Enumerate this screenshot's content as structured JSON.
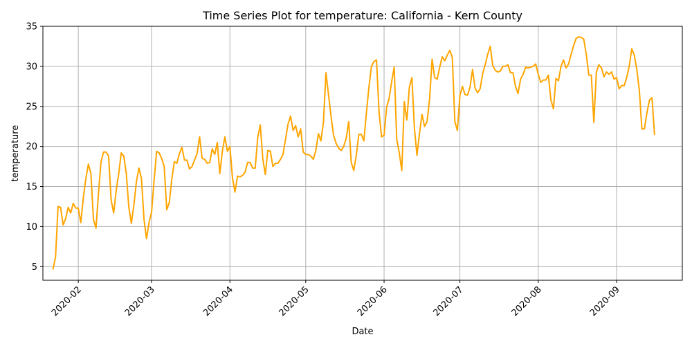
{
  "colors": {
    "series": "#ffa500",
    "grid": "#b0b0b0",
    "axis": "#000000"
  },
  "chart_data": {
    "type": "line",
    "title": "Time Series Plot for temperature: California - Kern County",
    "xlabel": "Date",
    "ylabel": "temperature",
    "grid": true,
    "xlim": [
      "2020-01-18",
      "2020-09-27"
    ],
    "ylim": [
      3.3,
      35.0
    ],
    "x_ticks": [
      {
        "date": "2020-02-01",
        "label": "2020-02"
      },
      {
        "date": "2020-03-01",
        "label": "2020-03"
      },
      {
        "date": "2020-04-01",
        "label": "2020-04"
      },
      {
        "date": "2020-05-01",
        "label": "2020-05"
      },
      {
        "date": "2020-06-01",
        "label": "2020-06"
      },
      {
        "date": "2020-07-01",
        "label": "2020-07"
      },
      {
        "date": "2020-08-01",
        "label": "2020-08"
      },
      {
        "date": "2020-09-01",
        "label": "2020-09"
      }
    ],
    "y_ticks": [
      5,
      10,
      15,
      20,
      25,
      30,
      35
    ],
    "series": [
      {
        "name": "temperature",
        "start_date": "2020-01-22",
        "step_days": 1,
        "values": [
          4.7,
          6.2,
          12.5,
          12.4,
          10.2,
          11.0,
          12.4,
          11.7,
          12.9,
          12.3,
          12.3,
          10.5,
          13.6,
          16.0,
          17.8,
          16.6,
          10.9,
          9.8,
          14.2,
          18.1,
          19.3,
          19.3,
          18.8,
          13.3,
          11.7,
          14.5,
          16.6,
          19.2,
          18.8,
          16.6,
          12.4,
          10.4,
          12.7,
          15.6,
          17.3,
          16.0,
          10.9,
          8.5,
          10.5,
          11.8,
          15.8,
          19.4,
          19.2,
          18.5,
          17.5,
          12.1,
          13.0,
          15.9,
          18.1,
          17.9,
          19.1,
          19.9,
          18.3,
          18.3,
          17.2,
          17.5,
          18.3,
          19.1,
          21.2,
          18.5,
          18.4,
          17.9,
          18.0,
          19.7,
          19.0,
          20.5,
          16.6,
          19.4,
          21.2,
          19.4,
          20.0,
          16.1,
          14.3,
          16.3,
          16.2,
          16.4,
          16.8,
          18.0,
          18.0,
          17.3,
          17.3,
          21.1,
          22.7,
          18.5,
          16.5,
          19.5,
          19.4,
          17.5,
          17.9,
          17.9,
          18.4,
          19.0,
          20.9,
          22.8,
          23.8,
          22.0,
          22.6,
          21.2,
          22.2,
          19.3,
          19.0,
          19.0,
          18.8,
          18.4,
          19.5,
          21.6,
          20.7,
          23.0,
          29.2,
          26.5,
          23.8,
          21.4,
          20.4,
          19.8,
          19.5,
          20.0,
          21.0,
          23.1,
          18.0,
          17.0,
          18.9,
          21.5,
          21.5,
          20.7,
          24.2,
          27.4,
          30.0,
          30.6,
          30.8,
          24.3,
          21.2,
          21.4,
          24.9,
          26.0,
          28.1,
          29.9,
          20.9,
          19.2,
          17.0,
          25.6,
          23.3,
          27.4,
          28.6,
          22.3,
          18.9,
          21.6,
          24.0,
          22.5,
          23.1,
          25.9,
          30.9,
          28.6,
          28.4,
          29.9,
          31.2,
          30.7,
          31.4,
          32.0,
          31.1,
          23.1,
          22.0,
          26.4,
          27.5,
          26.5,
          26.4,
          27.4,
          29.6,
          27.3,
          26.7,
          27.2,
          29.1,
          30.2,
          31.5,
          32.5,
          30.1,
          29.5,
          29.3,
          29.4,
          30.0,
          30.0,
          30.2,
          29.2,
          29.2,
          27.5,
          26.6,
          28.4,
          29.0,
          29.9,
          29.8,
          29.9,
          30.0,
          30.3,
          29.0,
          28.0,
          28.3,
          28.3,
          28.9,
          25.8,
          24.7,
          28.5,
          28.2,
          30.0,
          30.8,
          29.8,
          30.3,
          31.5,
          32.6,
          33.5,
          33.7,
          33.6,
          33.4,
          31.5,
          28.9,
          28.9,
          23.0,
          29.3,
          30.2,
          29.8,
          28.7,
          29.3,
          29.0,
          29.3,
          28.4,
          28.6,
          27.2,
          27.6,
          27.6,
          28.6,
          30.0,
          32.2,
          31.4,
          29.6,
          27.0,
          22.2,
          22.2,
          24.2,
          25.8,
          26.1,
          21.5
        ]
      }
    ]
  }
}
